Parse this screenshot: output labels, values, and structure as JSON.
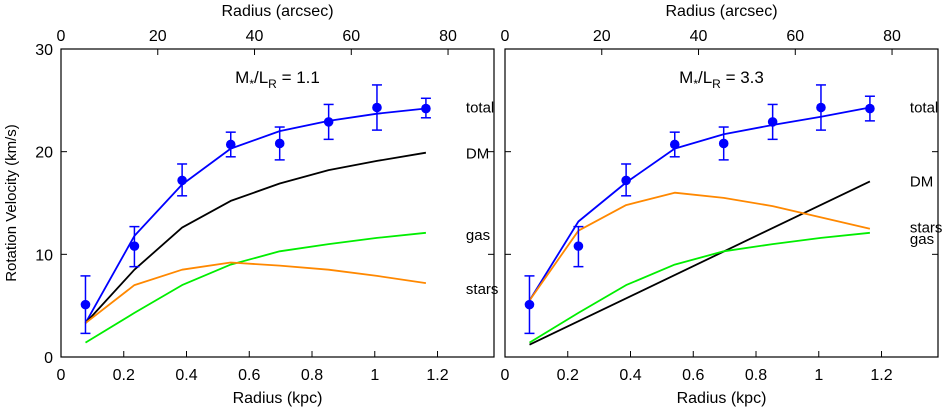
{
  "chart_data": [
    {
      "type": "line",
      "annotation": {
        "prefix": "M",
        "sub1": "*",
        "mid": "/L",
        "sub2": "R",
        "suffix": " = 1.1"
      },
      "xlabel": "Radius (kpc)",
      "x2label": "Radius (arcsec)",
      "ylabel": "Rotation Velocity (km/s)",
      "xlim": [
        0,
        1.38
      ],
      "ylim": [
        0,
        30
      ],
      "xticks": [
        "0",
        "0.2",
        "0.4",
        "0.6",
        "0.8",
        "1",
        "1.2"
      ],
      "xtick_values": [
        0,
        0.2,
        0.4,
        0.6,
        0.8,
        1.0,
        1.2
      ],
      "x2ticks": [
        "0",
        "20",
        "40",
        "60",
        "80"
      ],
      "x2tick_values": [
        0,
        20,
        40,
        60,
        80
      ],
      "x2lim": [
        0,
        89.5
      ],
      "yticks": [
        "0",
        "10",
        "20",
        "30"
      ],
      "ytick_values": [
        0,
        10,
        20,
        30
      ],
      "grid": false,
      "observed": {
        "x": [
          0.078,
          0.234,
          0.386,
          0.541,
          0.697,
          0.853,
          1.007,
          1.163
        ],
        "y": [
          5.1,
          10.8,
          17.2,
          20.7,
          20.8,
          22.9,
          24.3,
          24.2
        ],
        "err_low": [
          2.8,
          2.0,
          1.5,
          1.2,
          1.6,
          1.7,
          2.2,
          0.9
        ],
        "err_high": [
          2.8,
          1.9,
          1.6,
          1.2,
          1.6,
          1.7,
          2.2,
          1.0
        ],
        "color": "#0000ff"
      },
      "series": [
        {
          "name": "total",
          "color": "#0000ff",
          "x": [
            0.078,
            0.234,
            0.386,
            0.541,
            0.697,
            0.853,
            1.007,
            1.163
          ],
          "y": [
            3.3,
            11.8,
            16.8,
            20.3,
            22.0,
            23.0,
            23.7,
            24.2
          ]
        },
        {
          "name": "DM",
          "color": "#000000",
          "x": [
            0.078,
            0.234,
            0.386,
            0.541,
            0.697,
            0.853,
            1.007,
            1.163
          ],
          "y": [
            3.3,
            8.5,
            12.6,
            15.2,
            16.9,
            18.2,
            19.1,
            19.9
          ]
        },
        {
          "name": "gas",
          "color": "#00ee00",
          "x": [
            0.078,
            0.234,
            0.386,
            0.541,
            0.697,
            0.853,
            1.007,
            1.163
          ],
          "y": [
            1.4,
            4.3,
            7.0,
            9.0,
            10.3,
            11.0,
            11.6,
            12.1
          ]
        },
        {
          "name": "stars",
          "color": "#ff8800",
          "x": [
            0.078,
            0.234,
            0.386,
            0.541,
            0.697,
            0.853,
            1.007,
            1.163
          ],
          "y": [
            3.3,
            7.0,
            8.5,
            9.2,
            8.9,
            8.5,
            7.9,
            7.2
          ]
        }
      ],
      "labels": [
        {
          "text": "total",
          "series": "total",
          "y": 24.4
        },
        {
          "text": "DM",
          "series": "DM",
          "y": 19.9
        },
        {
          "text": "gas",
          "series": "gas",
          "y": 12.0
        },
        {
          "text": "stars",
          "series": "stars",
          "y": 6.7
        }
      ]
    },
    {
      "type": "line",
      "annotation": {
        "prefix": "M",
        "sub1": "*",
        "mid": "/L",
        "sub2": "R",
        "suffix": " = 3.3"
      },
      "xlabel": "Radius (kpc)",
      "x2label": "Radius (arcsec)",
      "ylabel": "",
      "xlim": [
        0,
        1.38
      ],
      "ylim": [
        0,
        30
      ],
      "xticks": [
        "0",
        "0.2",
        "0.4",
        "0.6",
        "0.8",
        "1",
        "1.2"
      ],
      "xtick_values": [
        0,
        0.2,
        0.4,
        0.6,
        0.8,
        1.0,
        1.2
      ],
      "x2ticks": [
        "0",
        "20",
        "40",
        "60",
        "80"
      ],
      "x2tick_values": [
        0,
        20,
        40,
        60,
        80
      ],
      "x2lim": [
        0,
        89.5
      ],
      "yticks": [],
      "ytick_values": [
        0,
        10,
        20,
        30
      ],
      "grid": false,
      "observed": {
        "x": [
          0.078,
          0.234,
          0.386,
          0.541,
          0.697,
          0.853,
          1.007,
          1.163
        ],
        "y": [
          5.1,
          10.8,
          17.2,
          20.7,
          20.8,
          22.9,
          24.3,
          24.2
        ],
        "err_low": [
          2.8,
          2.0,
          1.5,
          1.2,
          1.6,
          1.7,
          2.2,
          1.2
        ],
        "err_high": [
          2.8,
          1.9,
          1.6,
          1.2,
          1.6,
          1.7,
          2.2,
          1.2
        ],
        "color": "#0000ff"
      },
      "series": [
        {
          "name": "total",
          "color": "#0000ff",
          "x": [
            0.078,
            0.234,
            0.386,
            0.541,
            0.697,
            0.853,
            1.007,
            1.163
          ],
          "y": [
            5.5,
            13.2,
            17.0,
            20.3,
            21.7,
            22.6,
            23.4,
            24.3
          ]
        },
        {
          "name": "DM",
          "color": "#000000",
          "x": [
            0.078,
            1.163
          ],
          "y": [
            1.2,
            17.1
          ]
        },
        {
          "name": "stars",
          "color": "#ff8800",
          "x": [
            0.078,
            0.234,
            0.386,
            0.541,
            0.697,
            0.853,
            1.007,
            1.163
          ],
          "y": [
            5.5,
            12.3,
            14.8,
            16.0,
            15.5,
            14.7,
            13.6,
            12.5
          ]
        },
        {
          "name": "gas",
          "color": "#00ee00",
          "x": [
            0.078,
            0.234,
            0.386,
            0.541,
            0.697,
            0.853,
            1.007,
            1.163
          ],
          "y": [
            1.4,
            4.3,
            7.0,
            9.0,
            10.3,
            11.0,
            11.6,
            12.1
          ]
        }
      ],
      "labels": [
        {
          "text": "total",
          "series": "total",
          "y": 24.4
        },
        {
          "text": "DM",
          "series": "DM",
          "y": 17.2
        },
        {
          "text": "stars",
          "series": "stars",
          "y": 12.7
        },
        {
          "text": "gas",
          "series": "gas",
          "y": 11.6
        }
      ]
    }
  ]
}
